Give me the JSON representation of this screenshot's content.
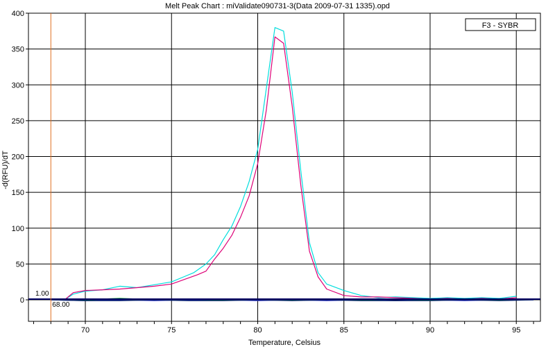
{
  "chart_data": {
    "type": "line",
    "title": "Melt Peak Chart : miValidate090731-3(Data 2009-07-31 1335).opd",
    "xlabel": "Temperature, Celsius",
    "ylabel": "-d(RFU)/dT",
    "xlim": [
      66.7,
      96.4
    ],
    "ylim": [
      -30,
      400
    ],
    "x_ticks": [
      70,
      75,
      80,
      85,
      90,
      95
    ],
    "y_ticks": [
      0,
      50,
      100,
      150,
      200,
      250,
      300,
      350,
      400
    ],
    "grid": true,
    "legend": {
      "label": "F3 - SYBR",
      "placement": "top-right"
    },
    "threshold": {
      "label": "1.00",
      "y": 1.0
    },
    "marker": {
      "label": "68.00",
      "x": 68.0,
      "color": "#e07020"
    },
    "series": [
      {
        "color": "#00dddd",
        "points": [
          [
            68.8,
            0
          ],
          [
            69.3,
            8
          ],
          [
            70,
            12
          ],
          [
            71,
            14
          ],
          [
            72,
            19
          ],
          [
            73,
            17
          ],
          [
            74,
            21
          ],
          [
            75,
            25
          ],
          [
            75.7,
            32
          ],
          [
            76.3,
            38
          ],
          [
            77,
            50
          ],
          [
            77.5,
            63
          ],
          [
            78,
            84
          ],
          [
            78.5,
            103
          ],
          [
            79,
            130
          ],
          [
            79.5,
            165
          ],
          [
            80,
            210
          ],
          [
            80.5,
            295
          ],
          [
            81,
            380
          ],
          [
            81.5,
            375
          ],
          [
            82,
            290
          ],
          [
            82.5,
            180
          ],
          [
            83,
            80
          ],
          [
            83.5,
            38
          ],
          [
            84,
            22
          ],
          [
            85,
            13
          ],
          [
            86,
            6
          ],
          [
            87,
            3
          ],
          [
            88,
            4
          ],
          [
            89,
            3
          ],
          [
            90,
            2
          ],
          [
            91,
            3
          ],
          [
            92,
            2
          ],
          [
            93,
            3
          ],
          [
            94,
            2
          ],
          [
            95,
            5
          ]
        ]
      },
      {
        "color": "#dd0077",
        "points": [
          [
            68.8,
            0
          ],
          [
            69.3,
            10
          ],
          [
            70,
            13
          ],
          [
            71,
            14
          ],
          [
            72,
            15
          ],
          [
            73,
            17
          ],
          [
            74,
            19
          ],
          [
            75,
            22
          ],
          [
            75.7,
            28
          ],
          [
            76.5,
            35
          ],
          [
            77,
            40
          ],
          [
            77.5,
            57
          ],
          [
            78,
            72
          ],
          [
            78.5,
            90
          ],
          [
            79,
            115
          ],
          [
            79.5,
            145
          ],
          [
            80,
            190
          ],
          [
            80.5,
            265
          ],
          [
            81,
            367
          ],
          [
            81.5,
            358
          ],
          [
            82,
            270
          ],
          [
            82.5,
            160
          ],
          [
            83,
            68
          ],
          [
            83.5,
            32
          ],
          [
            84,
            15
          ],
          [
            85,
            6
          ],
          [
            86,
            4
          ],
          [
            87,
            4
          ],
          [
            88,
            3
          ],
          [
            89,
            2
          ],
          [
            90,
            1
          ],
          [
            91,
            2
          ],
          [
            92,
            1
          ],
          [
            93,
            2
          ],
          [
            94,
            1
          ],
          [
            95,
            3
          ]
        ]
      },
      {
        "color": "#3333cc",
        "points": [
          [
            68,
            0
          ],
          [
            70,
            -1
          ],
          [
            72,
            0
          ],
          [
            74,
            -1
          ],
          [
            76,
            0
          ],
          [
            78,
            0
          ],
          [
            80,
            -1
          ],
          [
            82,
            0
          ],
          [
            84,
            -1
          ],
          [
            86,
            0
          ],
          [
            88,
            -1
          ],
          [
            90,
            0
          ],
          [
            92,
            -1
          ],
          [
            94,
            0
          ],
          [
            96,
            0
          ]
        ]
      },
      {
        "color": "#11aa33",
        "points": [
          [
            68,
            1
          ],
          [
            70,
            0
          ],
          [
            72,
            2
          ],
          [
            74,
            0
          ],
          [
            76,
            1
          ],
          [
            78,
            0
          ],
          [
            80,
            1
          ],
          [
            82,
            0
          ],
          [
            84,
            1
          ],
          [
            86,
            0
          ],
          [
            88,
            1
          ],
          [
            90,
            0
          ],
          [
            92,
            1
          ],
          [
            94,
            0
          ],
          [
            96,
            1
          ]
        ]
      },
      {
        "color": "#001a66",
        "points": [
          [
            68,
            0
          ],
          [
            70,
            -1
          ],
          [
            72,
            -1
          ],
          [
            74,
            0
          ],
          [
            76,
            -1
          ],
          [
            78,
            -1
          ],
          [
            80,
            0
          ],
          [
            82,
            -1
          ],
          [
            84,
            0
          ],
          [
            86,
            -1
          ],
          [
            88,
            -1
          ],
          [
            90,
            -1
          ],
          [
            92,
            0
          ],
          [
            94,
            -1
          ],
          [
            96,
            0
          ]
        ]
      }
    ]
  }
}
